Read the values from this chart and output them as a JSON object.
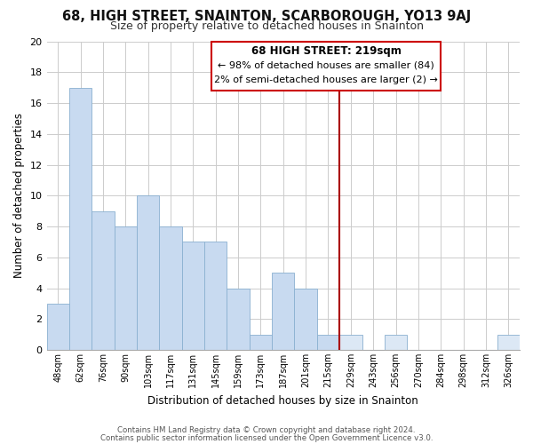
{
  "title": "68, HIGH STREET, SNAINTON, SCARBOROUGH, YO13 9AJ",
  "subtitle": "Size of property relative to detached houses in Snainton",
  "xlabel": "Distribution of detached houses by size in Snainton",
  "ylabel": "Number of detached properties",
  "footnote1": "Contains HM Land Registry data © Crown copyright and database right 2024.",
  "footnote2": "Contains public sector information licensed under the Open Government Licence v3.0.",
  "bar_labels": [
    "48sqm",
    "62sqm",
    "76sqm",
    "90sqm",
    "103sqm",
    "117sqm",
    "131sqm",
    "145sqm",
    "159sqm",
    "173sqm",
    "187sqm",
    "201sqm",
    "215sqm",
    "229sqm",
    "243sqm",
    "256sqm",
    "270sqm",
    "284sqm",
    "298sqm",
    "312sqm",
    "326sqm"
  ],
  "bar_values": [
    3,
    17,
    9,
    8,
    10,
    8,
    7,
    7,
    4,
    1,
    5,
    4,
    1,
    1,
    0,
    1,
    0,
    0,
    0,
    0,
    1
  ],
  "bar_color_left": "#c8daf0",
  "bar_color_right": "#dce8f5",
  "bar_edge_color": "#8ab0d0",
  "vline_x_idx": 12.5,
  "vline_color": "#aa0000",
  "annotation_title": "68 HIGH STREET: 219sqm",
  "annotation_line1": "← 98% of detached houses are smaller (84)",
  "annotation_line2": "2% of semi-detached houses are larger (2) →",
  "annotation_box_color": "#ffffff",
  "annotation_box_edge": "#cc0000",
  "ylim": [
    0,
    20
  ],
  "yticks": [
    0,
    2,
    4,
    6,
    8,
    10,
    12,
    14,
    16,
    18,
    20
  ],
  "grid_color": "#cccccc",
  "background_color": "#ffffff",
  "fig_width": 6.0,
  "fig_height": 5.0,
  "dpi": 100
}
